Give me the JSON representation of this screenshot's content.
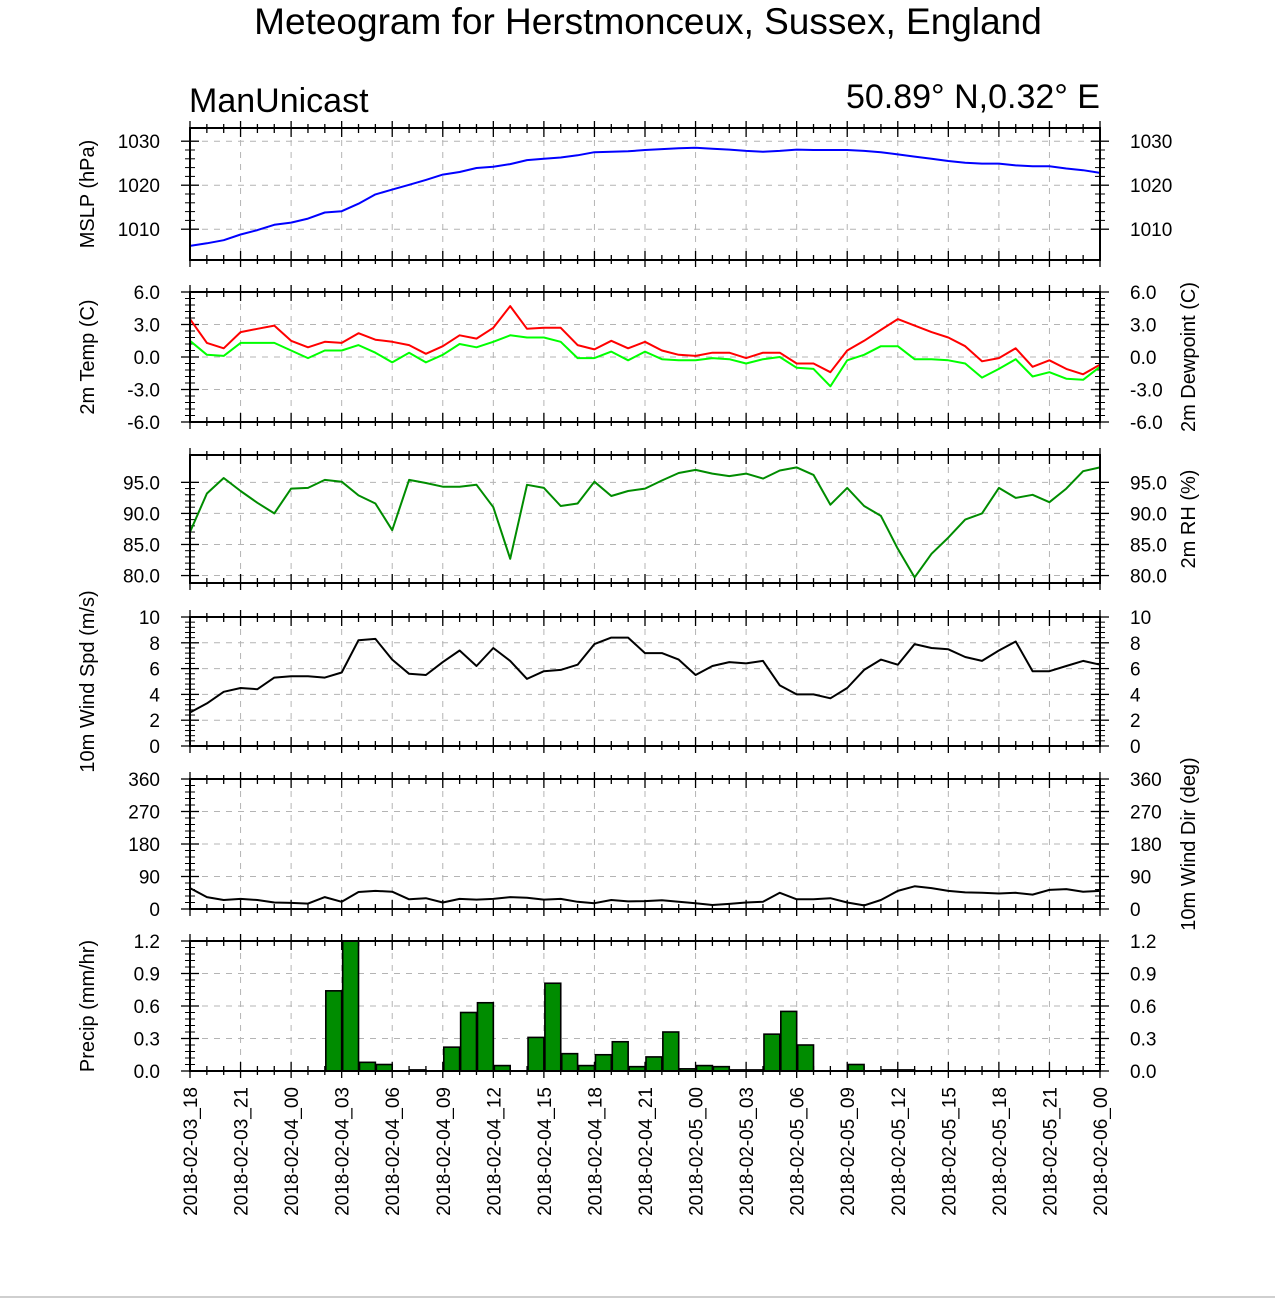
{
  "header": {
    "title": "Meteogram for Herstmonceux, Sussex, England",
    "model": "ManUnicast",
    "location": "50.89° N,0.32° E"
  },
  "colors": {
    "mslp": "#0000ff",
    "temp": "#ff0000",
    "dewpoint": "#00ff00",
    "rh": "#008c00",
    "wind": "#000000",
    "precip_fill": "#008c00",
    "grid": "#b4b4b4"
  },
  "chart_data": [
    {
      "type": "line",
      "id": "mslp",
      "ylabel": "MSLP (hPa)",
      "ylim": [
        1003,
        1033
      ],
      "yticks": [
        1010,
        1020,
        1030
      ],
      "ytick_labels": [
        "1010",
        "1020",
        "1030"
      ],
      "grid": true,
      "series": [
        {
          "values": [
            1006.2,
            1006.8,
            1007.5,
            1008.8,
            1009.8,
            1011.0,
            1011.5,
            1012.4,
            1013.8,
            1014.1,
            1015.8,
            1017.9,
            1019.0,
            1020.1,
            1021.2,
            1022.4,
            1023.0,
            1023.9,
            1024.2,
            1024.8,
            1025.7,
            1026.0,
            1026.3,
            1026.8,
            1027.5,
            1027.6,
            1027.7,
            1028.0,
            1028.2,
            1028.4,
            1028.5,
            1028.3,
            1028.1,
            1027.8,
            1027.6,
            1027.8,
            1028.1,
            1028.0,
            1028.0,
            1028.0,
            1027.8,
            1027.5,
            1027.0,
            1026.5,
            1026.0,
            1025.5,
            1025.1,
            1024.9,
            1024.9,
            1024.5,
            1024.3,
            1024.3,
            1023.8,
            1023.4,
            1022.8
          ]
        }
      ]
    },
    {
      "type": "line",
      "id": "temperature",
      "ylabel": "2m Temp (C)",
      "ylabel_right": "2m Dewpoint (C)",
      "ylim": [
        -6.0,
        6.0
      ],
      "yticks": [
        -6,
        -3,
        0,
        3,
        6
      ],
      "ytick_labels": [
        "-6.0",
        "-3.0",
        "0.0",
        "3.0",
        "6.0"
      ],
      "grid": true,
      "series": [
        {
          "values": [
            3.5,
            1.3,
            0.8,
            2.3,
            2.6,
            2.9,
            1.5,
            0.9,
            1.4,
            1.3,
            2.2,
            1.6,
            1.4,
            1.1,
            0.3,
            1.0,
            2.0,
            1.7,
            2.7,
            4.7,
            2.6,
            2.7,
            2.7,
            1.1,
            0.7,
            1.5,
            0.8,
            1.4,
            0.6,
            0.2,
            0.1,
            0.4,
            0.4,
            -0.1,
            0.4,
            0.4,
            -0.6,
            -0.6,
            -1.4,
            0.6,
            1.5,
            2.5,
            3.5,
            2.9,
            2.3,
            1.8,
            1.0,
            -0.4,
            -0.1,
            0.8,
            -0.9,
            -0.3,
            -1.1,
            -1.6,
            -0.7
          ]
        },
        {
          "values": [
            1.5,
            0.2,
            0.1,
            1.3,
            1.3,
            1.3,
            0.6,
            -0.1,
            0.6,
            0.6,
            1.1,
            0.4,
            -0.5,
            0.4,
            -0.5,
            0.2,
            1.2,
            0.9,
            1.4,
            2.0,
            1.8,
            1.8,
            1.4,
            -0.1,
            -0.1,
            0.5,
            -0.3,
            0.5,
            -0.2,
            -0.3,
            -0.3,
            -0.1,
            -0.2,
            -0.6,
            -0.2,
            0.0,
            -1.0,
            -1.1,
            -2.7,
            -0.3,
            0.2,
            1.0,
            1.0,
            -0.2,
            -0.2,
            -0.3,
            -0.6,
            -1.9,
            -1.1,
            -0.2,
            -1.8,
            -1.4,
            -2.0,
            -2.1,
            -0.9
          ]
        }
      ]
    },
    {
      "type": "line",
      "id": "rh",
      "ylabel_right": "2m RH (%)",
      "ylim": [
        78.8,
        99.4
      ],
      "yticks": [
        80,
        85,
        90,
        95
      ],
      "ytick_labels": [
        "80.0",
        "85.0",
        "90.0",
        "95.0"
      ],
      "grid": true,
      "series": [
        {
          "values": [
            87.0,
            93.2,
            95.7,
            93.6,
            91.7,
            90.0,
            94.0,
            94.1,
            95.4,
            95.1,
            92.9,
            91.6,
            87.3,
            95.4,
            94.9,
            94.3,
            94.3,
            94.6,
            91.0,
            82.7,
            94.6,
            94.1,
            91.2,
            91.6,
            95.1,
            92.8,
            93.6,
            94.0,
            95.3,
            96.5,
            97.0,
            96.4,
            96.0,
            96.4,
            95.6,
            96.9,
            97.4,
            96.2,
            91.4,
            94.1,
            91.2,
            89.6,
            84.3,
            79.7,
            83.5,
            86.1,
            89.0,
            90.0,
            94.1,
            92.5,
            93.0,
            91.8,
            94.0,
            96.8,
            97.4
          ]
        }
      ]
    },
    {
      "type": "line",
      "id": "wind_speed",
      "ylabel": "10m Wind Spd (m/s)",
      "ylim": [
        0,
        10
      ],
      "yticks": [
        0,
        2,
        4,
        6,
        8,
        10
      ],
      "ytick_labels": [
        "0",
        "2",
        "4",
        "6",
        "8",
        "10"
      ],
      "grid": true,
      "series": [
        {
          "values": [
            2.6,
            3.3,
            4.2,
            4.5,
            4.4,
            5.3,
            5.4,
            5.4,
            5.3,
            5.7,
            8.2,
            8.3,
            6.7,
            5.6,
            5.5,
            6.5,
            7.4,
            6.2,
            7.6,
            6.6,
            5.2,
            5.8,
            5.9,
            6.3,
            7.9,
            8.4,
            8.4,
            7.2,
            7.2,
            6.7,
            5.5,
            6.2,
            6.5,
            6.4,
            6.6,
            4.7,
            4.0,
            4.0,
            3.7,
            4.5,
            5.9,
            6.7,
            6.3,
            7.9,
            7.6,
            7.5,
            6.9,
            6.6,
            7.4,
            8.1,
            5.8,
            5.8,
            6.2,
            6.6,
            6.3
          ]
        }
      ]
    },
    {
      "type": "line",
      "id": "wind_direction",
      "ylabel_right": "10m Wind Dir (deg)",
      "ylim": [
        0,
        360
      ],
      "yticks": [
        0,
        90,
        180,
        270,
        360
      ],
      "ytick_labels": [
        "0",
        "90",
        "180",
        "270",
        "360"
      ],
      "grid": true,
      "series": [
        {
          "values": [
            58,
            33,
            25,
            28,
            25,
            18,
            17,
            15,
            33,
            20,
            47,
            50,
            48,
            27,
            30,
            18,
            28,
            26,
            28,
            33,
            31,
            26,
            28,
            20,
            16,
            25,
            21,
            22,
            24,
            20,
            16,
            11,
            14,
            18,
            20,
            45,
            27,
            27,
            30,
            18,
            10,
            25,
            50,
            63,
            58,
            50,
            46,
            45,
            43,
            45,
            40,
            53,
            55,
            48,
            50
          ]
        }
      ]
    },
    {
      "type": "bar",
      "id": "precip",
      "ylabel": "Precip (mm/hr)",
      "ylim": [
        0,
        1.2
      ],
      "yticks": [
        0,
        0.3,
        0.6,
        0.9,
        1.2
      ],
      "ytick_labels": [
        "0.0",
        "0.3",
        "0.6",
        "0.9",
        "1.2"
      ],
      "grid": true,
      "values": [
        0,
        0,
        0,
        0,
        0,
        0,
        0,
        0,
        0.74,
        1.2,
        0.08,
        0.06,
        0,
        0.01,
        0,
        0.22,
        0.54,
        0.63,
        0.05,
        0,
        0.31,
        0.81,
        0.16,
        0.05,
        0.15,
        0.27,
        0.04,
        0.13,
        0.36,
        0.02,
        0.05,
        0.04,
        0.01,
        0.01,
        0.34,
        0.55,
        0.24,
        0,
        0,
        0.06,
        0,
        0.01,
        0.01,
        0,
        0,
        0,
        0,
        0,
        0,
        0,
        0,
        0,
        0,
        0,
        0
      ],
      "x_tick_labels": [
        "2018-02-03_18",
        "2018-02-03_21",
        "2018-02-04_00",
        "2018-02-04_03",
        "2018-02-04_06",
        "2018-02-04_09",
        "2018-02-04_12",
        "2018-02-04_15",
        "2018-02-04_18",
        "2018-02-04_21",
        "2018-02-05_00",
        "2018-02-05_03",
        "2018-02-05_06",
        "2018-02-05_09",
        "2018-02-05_12",
        "2018-02-05_15",
        "2018-02-05_18",
        "2018-02-05_21",
        "2018-02-06_00"
      ]
    }
  ]
}
